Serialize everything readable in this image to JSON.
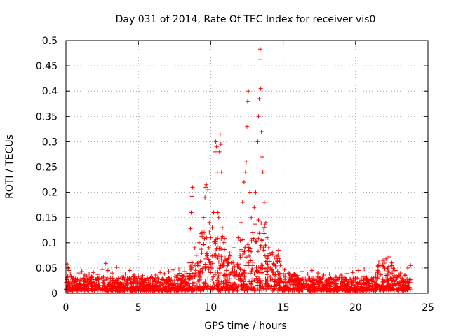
{
  "chart_data": {
    "type": "scatter",
    "title": "Day 031 of 2014, Rate Of TEC Index for receiver vis0",
    "xlabel": "GPS time / hours",
    "ylabel": "ROTI / TECUs",
    "xlim": [
      0,
      25
    ],
    "ylim": [
      0,
      0.5
    ],
    "xticks": [
      0,
      5,
      10,
      15,
      20,
      25
    ],
    "xtick_labels": [
      "0",
      "5",
      "10",
      "15",
      "20",
      "25"
    ],
    "yticks": [
      0,
      0.05,
      0.1,
      0.15,
      0.2,
      0.25,
      0.3,
      0.35,
      0.4,
      0.45,
      0.5
    ],
    "ytick_labels": [
      "0",
      "0.05",
      "0.1",
      "0.15",
      "0.2",
      "0.25",
      "0.3",
      "0.35",
      "0.4",
      "0.45",
      "0.5"
    ],
    "grid": true,
    "marker": "+",
    "color": "#ff0000",
    "series": [
      {
        "name": "ROTI",
        "points": [
          [
            0.0,
            0.021
          ],
          [
            0.1,
            0.058
          ],
          [
            0.15,
            0.05
          ],
          [
            0.2,
            0.045
          ],
          [
            0.3,
            0.038
          ],
          [
            0.5,
            0.03
          ],
          [
            0.7,
            0.034
          ],
          [
            0.9,
            0.04
          ],
          [
            1.1,
            0.043
          ],
          [
            1.3,
            0.036
          ],
          [
            1.6,
            0.038
          ],
          [
            1.9,
            0.041
          ],
          [
            2.2,
            0.037
          ],
          [
            2.5,
            0.047
          ],
          [
            2.75,
            0.059
          ],
          [
            2.9,
            0.045
          ],
          [
            3.2,
            0.04
          ],
          [
            3.5,
            0.051
          ],
          [
            3.8,
            0.042
          ],
          [
            4.1,
            0.038
          ],
          [
            4.4,
            0.045
          ],
          [
            4.7,
            0.036
          ],
          [
            5.0,
            0.033
          ],
          [
            5.3,
            0.035
          ],
          [
            5.6,
            0.03
          ],
          [
            5.9,
            0.034
          ],
          [
            6.2,
            0.036
          ],
          [
            6.5,
            0.041
          ],
          [
            6.8,
            0.039
          ],
          [
            7.1,
            0.043
          ],
          [
            7.4,
            0.046
          ],
          [
            7.8,
            0.048
          ],
          [
            8.2,
            0.043
          ],
          [
            8.5,
            0.06
          ],
          [
            8.6,
            0.128
          ],
          [
            8.65,
            0.16
          ],
          [
            8.7,
            0.192
          ],
          [
            8.75,
            0.21
          ],
          [
            8.9,
            0.09
          ],
          [
            9.0,
            0.075
          ],
          [
            9.2,
            0.1
          ],
          [
            9.4,
            0.12
          ],
          [
            9.5,
            0.15
          ],
          [
            9.6,
            0.19
          ],
          [
            9.65,
            0.21
          ],
          [
            9.7,
            0.215
          ],
          [
            9.8,
            0.205
          ],
          [
            9.9,
            0.14
          ],
          [
            10.0,
            0.11
          ],
          [
            10.1,
            0.13
          ],
          [
            10.2,
            0.16
          ],
          [
            10.3,
            0.28
          ],
          [
            10.35,
            0.3
          ],
          [
            10.4,
            0.29
          ],
          [
            10.45,
            0.24
          ],
          [
            10.5,
            0.16
          ],
          [
            10.55,
            0.15
          ],
          [
            10.6,
            0.28
          ],
          [
            10.65,
            0.315
          ],
          [
            10.7,
            0.295
          ],
          [
            10.75,
            0.24
          ],
          [
            10.8,
            0.13
          ],
          [
            10.9,
            0.1
          ],
          [
            11.0,
            0.07
          ],
          [
            11.3,
            0.08
          ],
          [
            11.6,
            0.09
          ],
          [
            11.9,
            0.11
          ],
          [
            12.1,
            0.14
          ],
          [
            12.2,
            0.18
          ],
          [
            12.3,
            0.22
          ],
          [
            12.4,
            0.24
          ],
          [
            12.45,
            0.26
          ],
          [
            12.5,
            0.33
          ],
          [
            12.55,
            0.38
          ],
          [
            12.6,
            0.4
          ],
          [
            12.7,
            0.2
          ],
          [
            12.8,
            0.15
          ],
          [
            12.9,
            0.12
          ],
          [
            13.0,
            0.17
          ],
          [
            13.1,
            0.2
          ],
          [
            13.2,
            0.25
          ],
          [
            13.25,
            0.3
          ],
          [
            13.3,
            0.35
          ],
          [
            13.35,
            0.385
          ],
          [
            13.4,
            0.463
          ],
          [
            13.42,
            0.483
          ],
          [
            13.45,
            0.405
          ],
          [
            13.5,
            0.32
          ],
          [
            13.55,
            0.27
          ],
          [
            13.6,
            0.24
          ],
          [
            13.7,
            0.18
          ],
          [
            13.8,
            0.14
          ],
          [
            13.9,
            0.11
          ],
          [
            14.0,
            0.09
          ],
          [
            14.2,
            0.08
          ],
          [
            14.4,
            0.07
          ],
          [
            14.6,
            0.065
          ],
          [
            14.8,
            0.055
          ],
          [
            15.1,
            0.046
          ],
          [
            15.4,
            0.04
          ],
          [
            15.7,
            0.037
          ],
          [
            16.0,
            0.035
          ],
          [
            16.3,
            0.043
          ],
          [
            16.7,
            0.038
          ],
          [
            17.0,
            0.045
          ],
          [
            17.4,
            0.04
          ],
          [
            17.8,
            0.036
          ],
          [
            18.2,
            0.038
          ],
          [
            18.6,
            0.034
          ],
          [
            19.0,
            0.036
          ],
          [
            19.4,
            0.039
          ],
          [
            19.8,
            0.041
          ],
          [
            20.2,
            0.045
          ],
          [
            20.6,
            0.048
          ],
          [
            21.0,
            0.042
          ],
          [
            21.4,
            0.038
          ],
          [
            21.7,
            0.055
          ],
          [
            21.9,
            0.065
          ],
          [
            22.1,
            0.068
          ],
          [
            22.3,
            0.072
          ],
          [
            22.5,
            0.06
          ],
          [
            22.8,
            0.045
          ],
          [
            23.1,
            0.04
          ],
          [
            23.4,
            0.036
          ],
          [
            23.6,
            0.05
          ],
          [
            23.8,
            0.055
          ]
        ]
      }
    ],
    "cloud": [
      [
        0.0,
        1.5,
        0.012,
        0.032
      ],
      [
        1.5,
        7.5,
        0.01,
        0.03
      ],
      [
        7.5,
        8.6,
        0.014,
        0.038
      ],
      [
        8.6,
        9.3,
        0.018,
        0.06
      ],
      [
        9.3,
        10.0,
        0.02,
        0.12
      ],
      [
        10.0,
        11.0,
        0.02,
        0.11
      ],
      [
        11.0,
        12.0,
        0.018,
        0.07
      ],
      [
        12.0,
        13.0,
        0.02,
        0.11
      ],
      [
        13.0,
        14.0,
        0.02,
        0.14
      ],
      [
        14.0,
        14.8,
        0.018,
        0.08
      ],
      [
        14.8,
        16.0,
        0.012,
        0.038
      ],
      [
        16.0,
        21.5,
        0.01,
        0.03
      ],
      [
        21.5,
        22.7,
        0.02,
        0.058
      ],
      [
        22.7,
        23.8,
        0.012,
        0.034
      ]
    ]
  }
}
